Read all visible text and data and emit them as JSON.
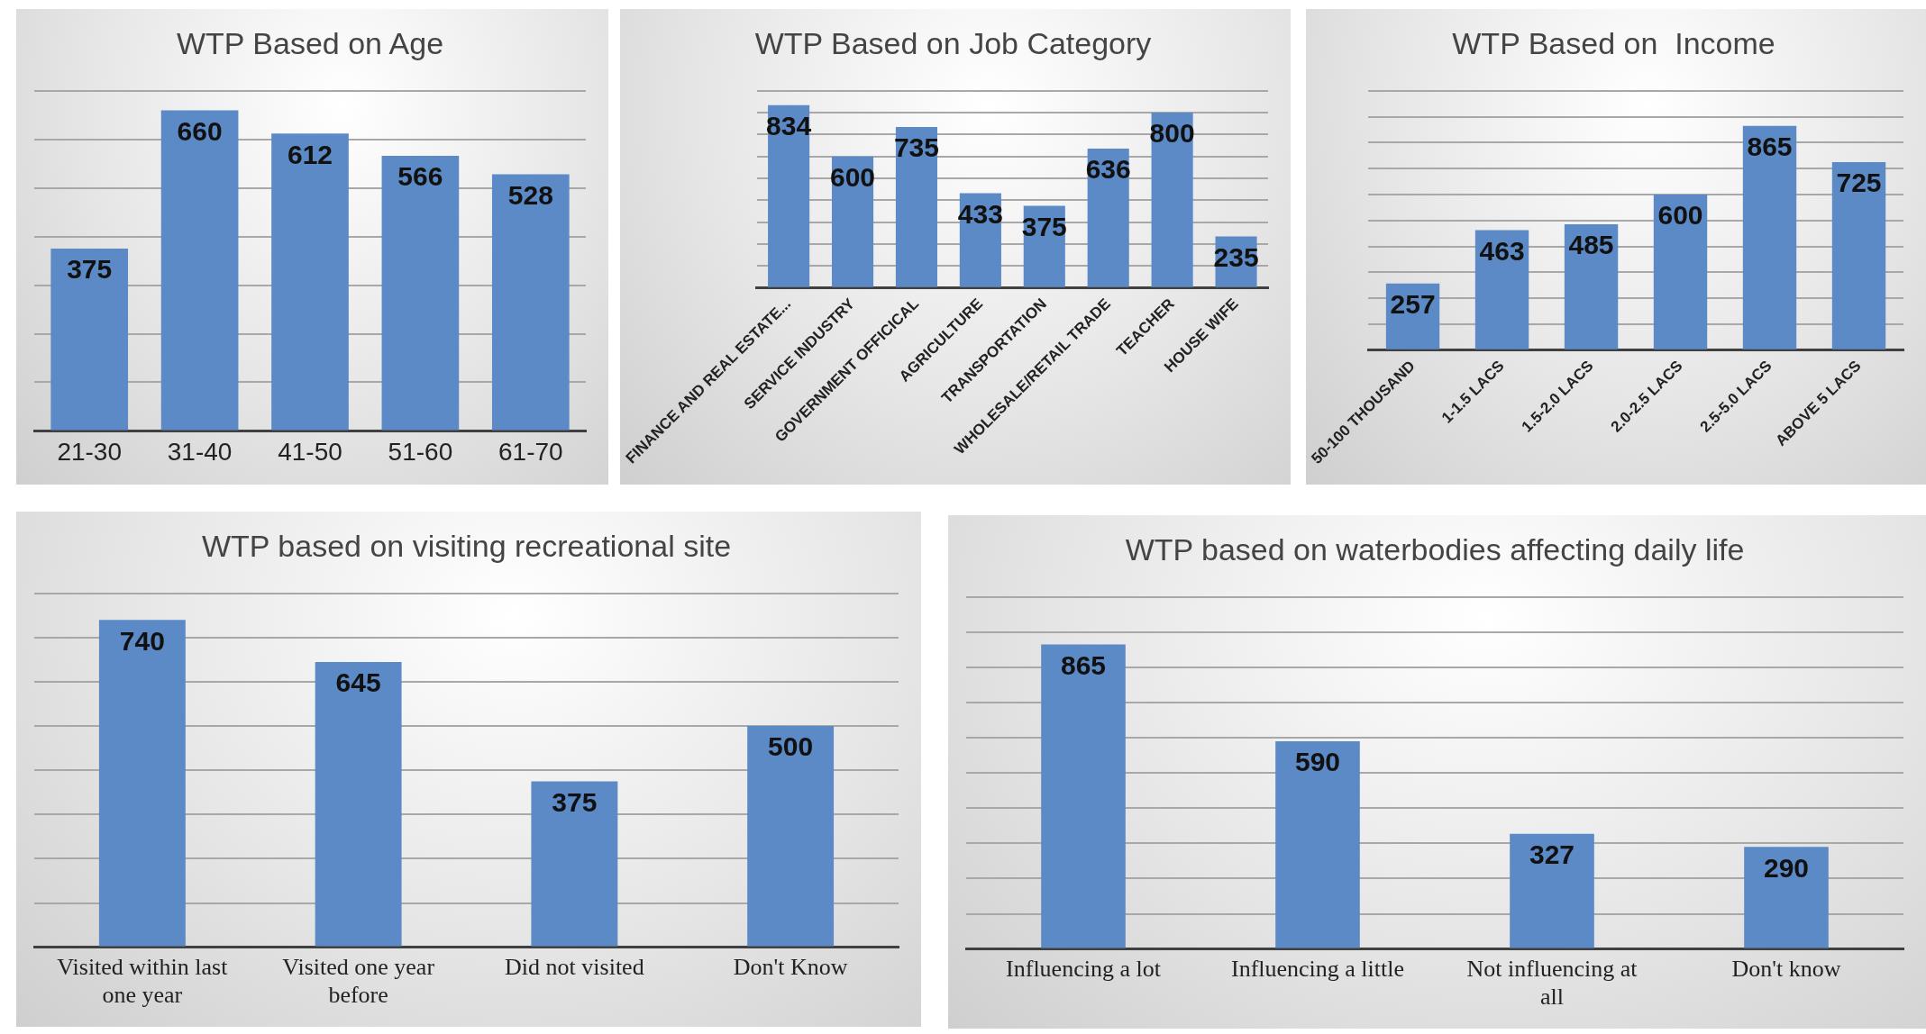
{
  "chart_data": [
    {
      "type": "bar",
      "title": "WTP Based on Age",
      "categories": [
        "21-30",
        "31-40",
        "41-50",
        "51-60",
        "61-70"
      ],
      "values": [
        375,
        660,
        612,
        566,
        528
      ],
      "color": "#5b8ac6",
      "ylim": [
        0,
        700
      ],
      "yticks": [
        0,
        100,
        200,
        300,
        400,
        500,
        600,
        700
      ],
      "grid": "y",
      "tick_labels": "x",
      "data_labels": true
    },
    {
      "type": "bar",
      "title": "WTP Based on Job Category",
      "categories": [
        "FINANCE AND REAL ESTATE...",
        "SERVICE INDUSTRY",
        "GOVERNMENT OFFICICAL",
        "AGRICULTURE",
        "TRANSPORTATION",
        "WHOLESALE/RETAIL TRADE",
        "TEACHER",
        "HOUSE WIFE"
      ],
      "values": [
        834,
        600,
        735,
        433,
        375,
        636,
        800,
        235
      ],
      "color": "#5b8ac6",
      "ylim": [
        0,
        900
      ],
      "yticks": [
        0,
        100,
        200,
        300,
        400,
        500,
        600,
        700,
        800,
        900
      ],
      "grid": "y",
      "tick_labels": "x",
      "data_labels": true
    },
    {
      "type": "bar",
      "title": "WTP Based on  Income",
      "categories": [
        "50-100 THOUSAND",
        "1-1.5 LACS",
        "1.5-2.0 LACS",
        "2.0-2.5 LACS",
        "2.5-5.0 LACS",
        "ABOVE 5 LACS"
      ],
      "values": [
        257,
        463,
        485,
        600,
        865,
        725
      ],
      "color": "#5b8ac6",
      "ylim": [
        0,
        1000
      ],
      "yticks": [
        0,
        100,
        200,
        300,
        400,
        500,
        600,
        700,
        800,
        900,
        1000
      ],
      "grid": "y",
      "tick_labels": "x",
      "data_labels": true
    },
    {
      "type": "bar",
      "title": "WTP based on visiting recreational site",
      "categories": [
        "Visited within last one year",
        "Visited one year before",
        "Did not visited",
        "Don't Know"
      ],
      "values": [
        740,
        645,
        375,
        500
      ],
      "color": "#5b8ac6",
      "ylim": [
        0,
        800
      ],
      "yticks": [
        0,
        100,
        200,
        300,
        400,
        500,
        600,
        700,
        800
      ],
      "grid": "y",
      "tick_labels": "x",
      "data_labels": true
    },
    {
      "type": "bar",
      "title": "WTP based on waterbodies affecting daily life",
      "categories": [
        "Influencing a lot",
        "Influencing a little",
        "Not influencing at all",
        "Don't know"
      ],
      "values": [
        865,
        590,
        327,
        290
      ],
      "color": "#5b8ac6",
      "ylim": [
        0,
        1000
      ],
      "yticks": [
        0,
        100,
        200,
        300,
        400,
        500,
        600,
        700,
        800,
        900,
        1000
      ],
      "grid": "y",
      "tick_labels": "x",
      "data_labels": true
    }
  ]
}
